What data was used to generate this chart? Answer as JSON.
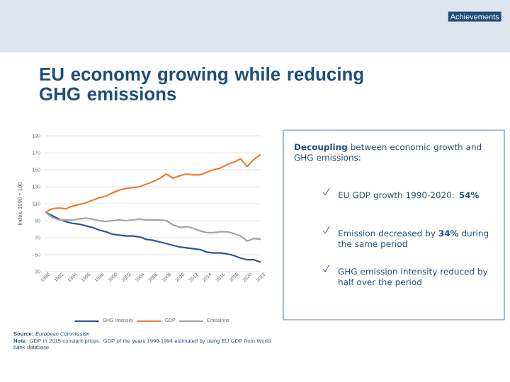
{
  "chart_data": {
    "type": "line",
    "title": "EU economy growing while reducing GHG emissions",
    "ylabel": "Index, 1990 = 100",
    "x": [
      1990,
      1991,
      1992,
      1993,
      1994,
      1995,
      1996,
      1997,
      1998,
      1999,
      2000,
      2001,
      2002,
      2003,
      2004,
      2005,
      2006,
      2007,
      2008,
      2009,
      2010,
      2011,
      2012,
      2013,
      2014,
      2015,
      2016,
      2017,
      2018,
      2019,
      2020,
      2021,
      2022
    ],
    "series": [
      {
        "name": "GHG Intensity",
        "color": "#2f5597",
        "values": [
          100,
          96,
          92,
          89,
          87,
          86,
          84,
          82,
          79,
          77,
          74,
          73,
          72,
          72,
          71,
          68,
          67,
          65,
          63,
          61,
          59,
          58,
          57,
          56,
          53,
          52,
          52,
          51,
          49,
          46,
          44,
          44,
          41
        ]
      },
      {
        "name": "GDP",
        "color": "#ed7d31",
        "values": [
          100,
          104,
          105,
          104,
          107,
          109,
          111,
          114,
          117,
          119,
          123,
          126,
          128,
          129,
          130,
          133,
          136,
          140,
          145,
          140,
          143,
          145,
          144,
          144,
          147,
          150,
          152,
          156,
          159,
          163,
          154,
          162,
          168
        ]
      },
      {
        "name": "Emissions",
        "color": "#a5a5a5",
        "values": [
          100,
          94,
          91,
          91,
          91,
          92,
          93,
          92,
          90,
          89,
          90,
          91,
          90,
          91,
          92,
          91,
          91,
          91,
          90,
          85,
          82,
          83,
          81,
          78,
          76,
          76,
          77,
          77,
          75,
          72,
          66,
          69,
          68
        ]
      }
    ],
    "xlim": [
      1990,
      2022
    ],
    "xticks": [
      1990,
      1992,
      1994,
      1996,
      1998,
      2000,
      2002,
      2004,
      2006,
      2008,
      2010,
      2012,
      2014,
      2016,
      2018,
      2020,
      2022
    ],
    "ylim": [
      30,
      190
    ],
    "yticks": [
      30,
      50,
      70,
      90,
      110,
      130,
      150,
      170,
      190
    ],
    "grid": "y",
    "legend": "bottom",
    "marker": "none",
    "line_style": "solid",
    "annotations": [
      "Achievements",
      "**Decoupling** between economic growth and GHG emissions:",
      "EU GDP growth 1990-2020: **54%**",
      "Emission decreased by **34%** during the same period",
      "GHG emission intensity reduced by half over the period",
      "**Source:** *European Commission*",
      "**Note**: GDP in 2015 constant prices. GDP of the years 1990-1994 estimated by using EU GDP from World bank database"
    ]
  }
}
